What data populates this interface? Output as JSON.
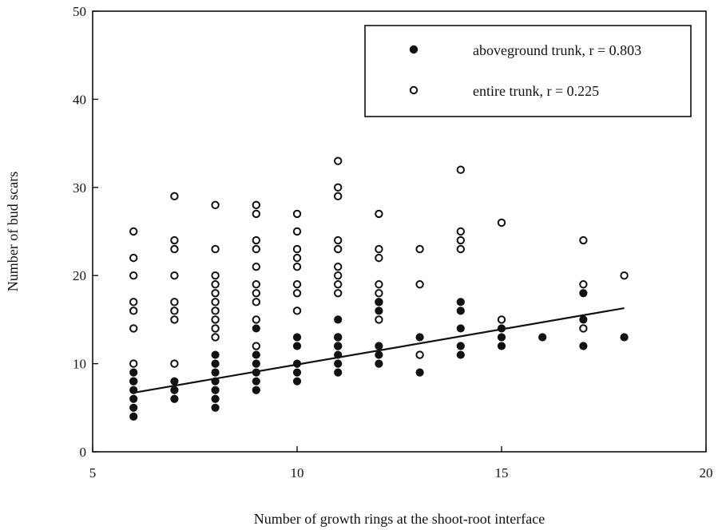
{
  "chart_data": {
    "type": "scatter",
    "title": "",
    "xlabel": "Number of growth rings at the shoot-root interface",
    "ylabel": "Number of bud scars",
    "xlim": [
      5,
      20
    ],
    "ylim": [
      0,
      50
    ],
    "x_ticks": [
      5,
      10,
      15,
      20
    ],
    "y_ticks": [
      0,
      10,
      20,
      30,
      40,
      50
    ],
    "grid": false,
    "legend_position": "top-right",
    "series": [
      {
        "name": "aboveground trunk, r = 0.803",
        "marker": "filled-circle",
        "color": "#111111",
        "points": [
          [
            6,
            4
          ],
          [
            6,
            5
          ],
          [
            6,
            6
          ],
          [
            6,
            7
          ],
          [
            6,
            8
          ],
          [
            6,
            9
          ],
          [
            7,
            6
          ],
          [
            7,
            7
          ],
          [
            7,
            8
          ],
          [
            8,
            5
          ],
          [
            8,
            6
          ],
          [
            8,
            7
          ],
          [
            8,
            8
          ],
          [
            8,
            9
          ],
          [
            8,
            10
          ],
          [
            8,
            11
          ],
          [
            9,
            7
          ],
          [
            9,
            8
          ],
          [
            9,
            9
          ],
          [
            9,
            10
          ],
          [
            9,
            11
          ],
          [
            9,
            14
          ],
          [
            10,
            8
          ],
          [
            10,
            9
          ],
          [
            10,
            10
          ],
          [
            10,
            12
          ],
          [
            10,
            13
          ],
          [
            11,
            9
          ],
          [
            11,
            10
          ],
          [
            11,
            11
          ],
          [
            11,
            12
          ],
          [
            11,
            13
          ],
          [
            11,
            15
          ],
          [
            12,
            10
          ],
          [
            12,
            11
          ],
          [
            12,
            12
          ],
          [
            12,
            16
          ],
          [
            12,
            17
          ],
          [
            13,
            9
          ],
          [
            13,
            13
          ],
          [
            14,
            11
          ],
          [
            14,
            12
          ],
          [
            14,
            14
          ],
          [
            14,
            16
          ],
          [
            14,
            17
          ],
          [
            15,
            12
          ],
          [
            15,
            13
          ],
          [
            15,
            14
          ],
          [
            16,
            13
          ],
          [
            17,
            12
          ],
          [
            17,
            15
          ],
          [
            17,
            18
          ],
          [
            18,
            13
          ]
        ]
      },
      {
        "name": "entire trunk, r = 0.225",
        "marker": "open-circle",
        "color": "#111111",
        "points": [
          [
            6,
            8
          ],
          [
            6,
            10
          ],
          [
            6,
            14
          ],
          [
            6,
            16
          ],
          [
            6,
            17
          ],
          [
            6,
            20
          ],
          [
            6,
            22
          ],
          [
            6,
            25
          ],
          [
            7,
            10
          ],
          [
            7,
            15
          ],
          [
            7,
            16
          ],
          [
            7,
            17
          ],
          [
            7,
            20
          ],
          [
            7,
            23
          ],
          [
            7,
            24
          ],
          [
            7,
            29
          ],
          [
            8,
            13
          ],
          [
            8,
            14
          ],
          [
            8,
            15
          ],
          [
            8,
            16
          ],
          [
            8,
            17
          ],
          [
            8,
            18
          ],
          [
            8,
            19
          ],
          [
            8,
            20
          ],
          [
            8,
            23
          ],
          [
            8,
            28
          ],
          [
            9,
            12
          ],
          [
            9,
            15
          ],
          [
            9,
            17
          ],
          [
            9,
            18
          ],
          [
            9,
            19
          ],
          [
            9,
            21
          ],
          [
            9,
            23
          ],
          [
            9,
            24
          ],
          [
            9,
            27
          ],
          [
            9,
            28
          ],
          [
            10,
            16
          ],
          [
            10,
            18
          ],
          [
            10,
            19
          ],
          [
            10,
            21
          ],
          [
            10,
            22
          ],
          [
            10,
            23
          ],
          [
            10,
            25
          ],
          [
            10,
            27
          ],
          [
            11,
            12
          ],
          [
            11,
            13
          ],
          [
            11,
            18
          ],
          [
            11,
            19
          ],
          [
            11,
            20
          ],
          [
            11,
            21
          ],
          [
            11,
            23
          ],
          [
            11,
            24
          ],
          [
            11,
            29
          ],
          [
            11,
            30
          ],
          [
            11,
            33
          ],
          [
            12,
            15
          ],
          [
            12,
            17
          ],
          [
            12,
            18
          ],
          [
            12,
            19
          ],
          [
            12,
            22
          ],
          [
            12,
            23
          ],
          [
            12,
            27
          ],
          [
            13,
            11
          ],
          [
            13,
            19
          ],
          [
            13,
            23
          ],
          [
            14,
            23
          ],
          [
            14,
            24
          ],
          [
            14,
            25
          ],
          [
            14,
            32
          ],
          [
            15,
            15
          ],
          [
            15,
            26
          ],
          [
            17,
            14
          ],
          [
            17,
            19
          ],
          [
            17,
            24
          ],
          [
            18,
            20
          ]
        ]
      }
    ],
    "regression_line": {
      "series": "aboveground trunk",
      "x": [
        6,
        18
      ],
      "y": [
        6.7,
        16.3
      ]
    }
  }
}
